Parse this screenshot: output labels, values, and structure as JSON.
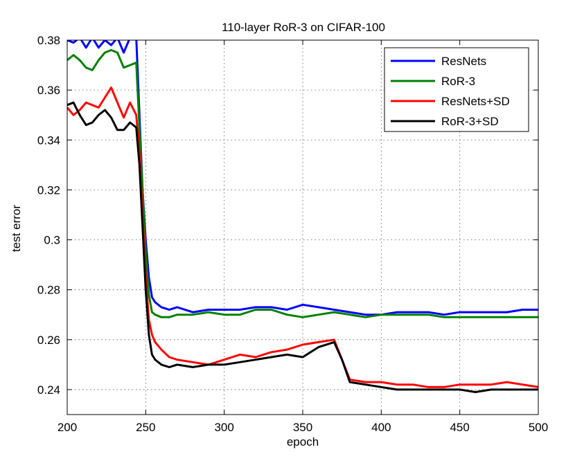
{
  "chart_data": {
    "type": "line",
    "title": "110-layer RoR-3 on CIFAR-100",
    "xlabel": "epoch",
    "ylabel": "test error",
    "xlim": [
      200,
      500
    ],
    "ylim": [
      0.23,
      0.38
    ],
    "xticks": [
      200,
      250,
      300,
      350,
      400,
      450,
      500
    ],
    "yticks": [
      0.24,
      0.26,
      0.28,
      0.3,
      0.32,
      0.34,
      0.36,
      0.38
    ],
    "ytick_labels": [
      "0.24",
      "0.26",
      "0.28",
      "0.3",
      "0.32",
      "0.34",
      "0.36",
      "0.38"
    ],
    "grid": true,
    "legend_position": "top-right",
    "series": [
      {
        "name": "ResNets",
        "color": "#0000ff",
        "x": [
          200,
          204,
          208,
          212,
          216,
          220,
          224,
          228,
          232,
          236,
          240,
          244,
          246,
          248,
          250,
          252,
          254,
          256,
          260,
          265,
          270,
          280,
          290,
          300,
          310,
          320,
          330,
          340,
          350,
          360,
          370,
          380,
          390,
          400,
          410,
          420,
          430,
          440,
          450,
          460,
          470,
          480,
          490,
          500
        ],
        "y": [
          0.38,
          0.379,
          0.381,
          0.377,
          0.381,
          0.377,
          0.38,
          0.378,
          0.381,
          0.375,
          0.381,
          0.381,
          0.35,
          0.32,
          0.3,
          0.285,
          0.277,
          0.275,
          0.273,
          0.272,
          0.273,
          0.271,
          0.272,
          0.272,
          0.272,
          0.273,
          0.273,
          0.272,
          0.274,
          0.273,
          0.272,
          0.271,
          0.27,
          0.27,
          0.271,
          0.271,
          0.271,
          0.27,
          0.271,
          0.271,
          0.271,
          0.271,
          0.272,
          0.272
        ]
      },
      {
        "name": "RoR-3",
        "color": "#008000",
        "x": [
          200,
          204,
          208,
          212,
          216,
          220,
          224,
          228,
          232,
          236,
          240,
          244,
          246,
          248,
          250,
          252,
          254,
          256,
          260,
          265,
          270,
          280,
          290,
          300,
          310,
          320,
          330,
          340,
          350,
          360,
          370,
          380,
          390,
          400,
          410,
          420,
          430,
          440,
          450,
          460,
          470,
          480,
          490,
          500
        ],
        "y": [
          0.372,
          0.374,
          0.372,
          0.369,
          0.368,
          0.372,
          0.375,
          0.376,
          0.375,
          0.369,
          0.37,
          0.371,
          0.345,
          0.32,
          0.295,
          0.278,
          0.271,
          0.27,
          0.269,
          0.269,
          0.27,
          0.27,
          0.271,
          0.27,
          0.27,
          0.272,
          0.272,
          0.27,
          0.269,
          0.27,
          0.271,
          0.27,
          0.269,
          0.27,
          0.27,
          0.27,
          0.27,
          0.269,
          0.269,
          0.269,
          0.269,
          0.269,
          0.269,
          0.269
        ]
      },
      {
        "name": "ResNets+SD",
        "color": "#ff0000",
        "x": [
          200,
          204,
          208,
          212,
          216,
          220,
          224,
          228,
          232,
          236,
          240,
          244,
          246,
          248,
          250,
          252,
          254,
          256,
          260,
          265,
          270,
          280,
          290,
          300,
          310,
          320,
          330,
          340,
          350,
          360,
          370,
          375,
          380,
          390,
          400,
          410,
          420,
          430,
          440,
          450,
          460,
          470,
          480,
          490,
          500
        ],
        "y": [
          0.353,
          0.35,
          0.352,
          0.355,
          0.354,
          0.353,
          0.357,
          0.361,
          0.355,
          0.349,
          0.355,
          0.35,
          0.335,
          0.31,
          0.285,
          0.268,
          0.262,
          0.259,
          0.256,
          0.253,
          0.252,
          0.251,
          0.25,
          0.252,
          0.254,
          0.253,
          0.255,
          0.256,
          0.258,
          0.259,
          0.26,
          0.252,
          0.244,
          0.243,
          0.243,
          0.242,
          0.242,
          0.241,
          0.241,
          0.242,
          0.242,
          0.242,
          0.243,
          0.242,
          0.241
        ]
      },
      {
        "name": "RoR-3+SD",
        "color": "#000000",
        "x": [
          200,
          204,
          208,
          212,
          216,
          220,
          224,
          228,
          232,
          236,
          240,
          244,
          246,
          248,
          250,
          252,
          254,
          256,
          260,
          265,
          270,
          280,
          290,
          300,
          310,
          320,
          330,
          340,
          350,
          360,
          370,
          375,
          380,
          390,
          400,
          410,
          420,
          430,
          440,
          450,
          460,
          470,
          480,
          490,
          500
        ],
        "y": [
          0.354,
          0.355,
          0.35,
          0.346,
          0.347,
          0.35,
          0.352,
          0.349,
          0.344,
          0.344,
          0.347,
          0.345,
          0.33,
          0.305,
          0.28,
          0.262,
          0.254,
          0.252,
          0.25,
          0.249,
          0.25,
          0.249,
          0.25,
          0.25,
          0.251,
          0.252,
          0.253,
          0.254,
          0.253,
          0.257,
          0.259,
          0.252,
          0.243,
          0.242,
          0.241,
          0.24,
          0.24,
          0.24,
          0.24,
          0.24,
          0.239,
          0.24,
          0.24,
          0.24,
          0.24
        ]
      }
    ]
  }
}
